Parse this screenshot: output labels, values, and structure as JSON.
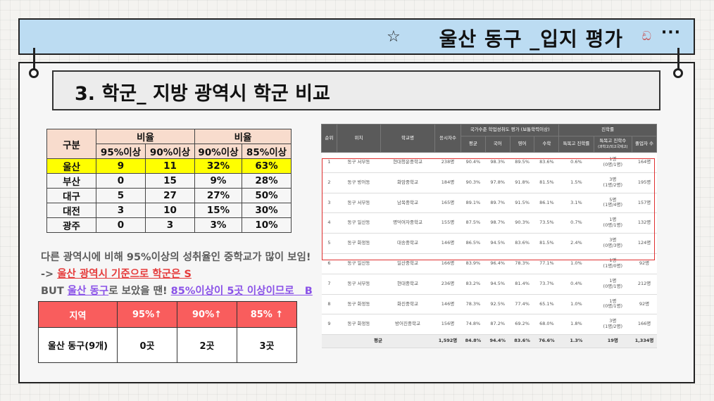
{
  "header": {
    "title": "울산 동구 _입지 평가",
    "star_icon": "star-icon",
    "decor_icon": "swirl-icon",
    "menu_icon": "more-dots-icon"
  },
  "section": {
    "title": "3.  학군_ 지방 광역시 학군 비교"
  },
  "comparison": {
    "corner": "구분",
    "group_headers": [
      "비율",
      "비율"
    ],
    "sub_headers": [
      "95%이상",
      "90%이상",
      "90%이상",
      "85%이상"
    ],
    "rows": [
      {
        "name": "울산",
        "values": [
          "9",
          "11",
          "32%",
          "63%"
        ],
        "highlight": true
      },
      {
        "name": "부산",
        "values": [
          "0",
          "15",
          "9%",
          "28%"
        ]
      },
      {
        "name": "대구",
        "values": [
          "5",
          "27",
          "27%",
          "50%"
        ]
      },
      {
        "name": "대전",
        "values": [
          "3",
          "10",
          "15%",
          "30%"
        ]
      },
      {
        "name": "광주",
        "values": [
          "0",
          "3",
          "3%",
          "10%"
        ]
      }
    ],
    "highlight_color": "#ffff00",
    "header_color": "#f8dccd"
  },
  "notes": {
    "line1": "다른 광역시에 비해 95%이상의 성취율인 중학교가 많이 보임!",
    "line2_prefix": "-> ",
    "line2_red": "울산 광역시 기준으로 학군은 S",
    "line3_prefix": "BUT ",
    "line3_purple1": "울산 동구",
    "line3_mid": "로 보았을 땐! ",
    "line3_purple2": "85%이상이 5곳 이상이므로",
    "line3_suffix": "   B"
  },
  "summary": {
    "headers": [
      "지역",
      "95%↑",
      "90%↑",
      "85% ↑"
    ],
    "row": [
      "울산 동구(9개)",
      "0곳",
      "2곳",
      "3곳"
    ],
    "header_color": "#f95d5d"
  },
  "schools": {
    "headers": {
      "rank": "순위",
      "location": "위치",
      "school": "학교명",
      "applicants": "응시자수",
      "achievement_group": "국가수준 학업성취도 평가 (보통학력이상)",
      "achievement_cols": [
        "평균",
        "국어",
        "영어",
        "수학"
      ],
      "advance_group": "진학률",
      "advance_cols": [
        "특목고 진학률",
        "특목고 진학수",
        "졸업자 수"
      ],
      "advance_sub": "(과학고/외고국제고)"
    },
    "rows": [
      {
        "rank": "1",
        "location": "동구 서부동",
        "school": "현대청운중학교",
        "applicants": "238명",
        "avg": "90.4%",
        "kor": "98.3%",
        "eng": "89.5%",
        "math": "83.6%",
        "rate": "0.6%",
        "count": "1명",
        "count_detail": "(0명/1명)",
        "grads": "164명"
      },
      {
        "rank": "2",
        "location": "동구 방어동",
        "school": "화암중학교",
        "applicants": "184명",
        "avg": "90.3%",
        "kor": "97.8%",
        "eng": "91.8%",
        "math": "81.5%",
        "rate": "1.5%",
        "count": "3명",
        "count_detail": "(1명/2명)",
        "grads": "195명"
      },
      {
        "rank": "3",
        "location": "동구 서부동",
        "school": "남목중학교",
        "applicants": "165명",
        "avg": "89.1%",
        "kor": "89.7%",
        "eng": "91.5%",
        "math": "86.1%",
        "rate": "3.1%",
        "count": "5명",
        "count_detail": "(1명/4명)",
        "grads": "157명"
      },
      {
        "rank": "4",
        "location": "동구 일산동",
        "school": "명덕여자중학교",
        "applicants": "155명",
        "avg": "87.5%",
        "kor": "98.7%",
        "eng": "90.3%",
        "math": "73.5%",
        "rate": "0.7%",
        "count": "1명",
        "count_detail": "(0명/1명)",
        "grads": "132명"
      },
      {
        "rank": "5",
        "location": "동구 화정동",
        "school": "대송중학교",
        "applicants": "146명",
        "avg": "86.5%",
        "kor": "94.5%",
        "eng": "83.6%",
        "math": "81.5%",
        "rate": "2.4%",
        "count": "3명",
        "count_detail": "(0명/3명)",
        "grads": "124명"
      },
      {
        "rank": "6",
        "location": "동구 일산동",
        "school": "일산중학교",
        "applicants": "166명",
        "avg": "83.9%",
        "kor": "96.4%",
        "eng": "78.3%",
        "math": "77.1%",
        "rate": "1.0%",
        "count": "1명",
        "count_detail": "(1명/0명)",
        "grads": "92명"
      },
      {
        "rank": "7",
        "location": "동구 서부동",
        "school": "현대중학교",
        "applicants": "236명",
        "avg": "83.2%",
        "kor": "94.5%",
        "eng": "81.4%",
        "math": "73.7%",
        "rate": "0.4%",
        "count": "1명",
        "count_detail": "(0명/1명)",
        "grads": "212명"
      },
      {
        "rank": "8",
        "location": "동구 화정동",
        "school": "화진중학교",
        "applicants": "146명",
        "avg": "78.3%",
        "kor": "92.5%",
        "eng": "77.4%",
        "math": "65.1%",
        "rate": "1.0%",
        "count": "1명",
        "count_detail": "(0명/1명)",
        "grads": "92명"
      },
      {
        "rank": "9",
        "location": "동구 화정동",
        "school": "방어진중학교",
        "applicants": "156명",
        "avg": "74.8%",
        "kor": "87.2%",
        "eng": "69.2%",
        "math": "68.0%",
        "rate": "1.8%",
        "count": "3명",
        "count_detail": "(1명/2명)",
        "grads": "166명"
      }
    ],
    "average": {
      "label": "평균",
      "applicants": "1,592명",
      "avg": "84.8%",
      "kor": "94.4%",
      "eng": "83.6%",
      "math": "76.6%",
      "rate": "1.3%",
      "count": "19명",
      "grads": "1,334명"
    }
  }
}
